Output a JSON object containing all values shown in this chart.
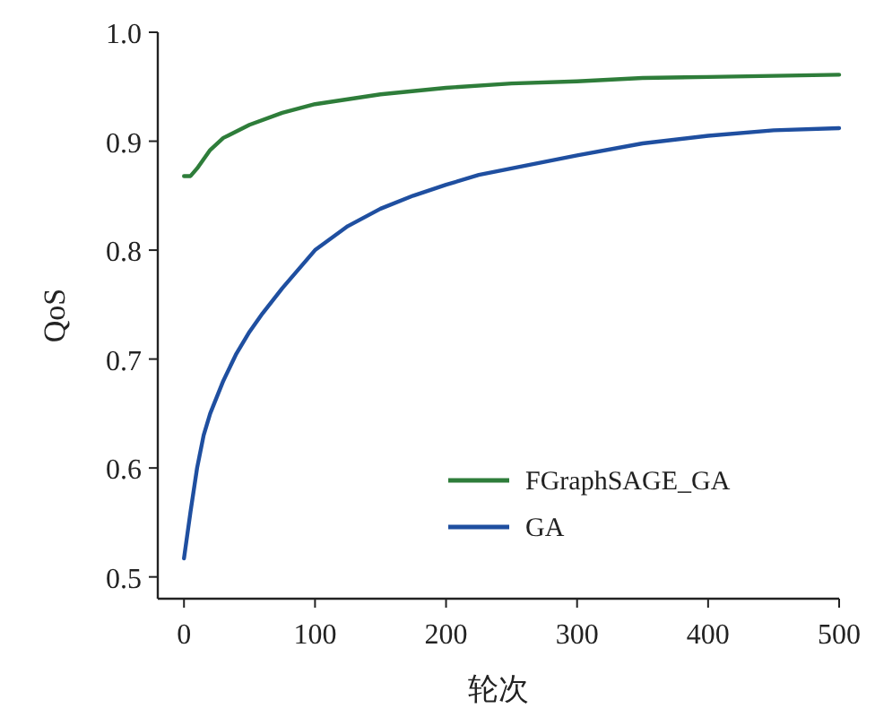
{
  "chart_data": {
    "type": "line",
    "xlabel": "轮次",
    "ylabel": "QoS",
    "xlim": [
      -20,
      500
    ],
    "ylim": [
      0.48,
      1.0
    ],
    "xticks": [
      0,
      100,
      200,
      300,
      400,
      500
    ],
    "yticks": [
      {
        "value": 0.5,
        "label": "0.5"
      },
      {
        "value": 0.6,
        "label": "0.6"
      },
      {
        "value": 0.7,
        "label": "0.7"
      },
      {
        "value": 0.8,
        "label": "0.8"
      },
      {
        "value": 0.9,
        "label": "0.9"
      },
      {
        "value": 1.0,
        "label": "1.0"
      }
    ],
    "legend": "bottom right",
    "grid": false,
    "marker": "none",
    "line_style": "solid",
    "series": [
      {
        "name": "FGraphSAGE_GA",
        "color": "#2e7d3a",
        "x": [
          0,
          5,
          10,
          20,
          30,
          50,
          75,
          100,
          150,
          200,
          250,
          300,
          350,
          400,
          450,
          500
        ],
        "values": [
          0.868,
          0.868,
          0.875,
          0.892,
          0.903,
          0.915,
          0.926,
          0.934,
          0.943,
          0.949,
          0.953,
          0.955,
          0.958,
          0.959,
          0.96,
          0.961
        ]
      },
      {
        "name": "GA",
        "color": "#1f4fa0",
        "x": [
          0,
          5,
          10,
          15,
          20,
          30,
          40,
          50,
          60,
          75,
          100,
          125,
          150,
          175,
          200,
          225,
          250,
          300,
          350,
          400,
          450,
          500
        ],
        "values": [
          0.517,
          0.56,
          0.6,
          0.63,
          0.65,
          0.68,
          0.705,
          0.725,
          0.742,
          0.765,
          0.8,
          0.822,
          0.838,
          0.85,
          0.86,
          0.869,
          0.875,
          0.887,
          0.898,
          0.905,
          0.91,
          0.912
        ]
      }
    ]
  }
}
